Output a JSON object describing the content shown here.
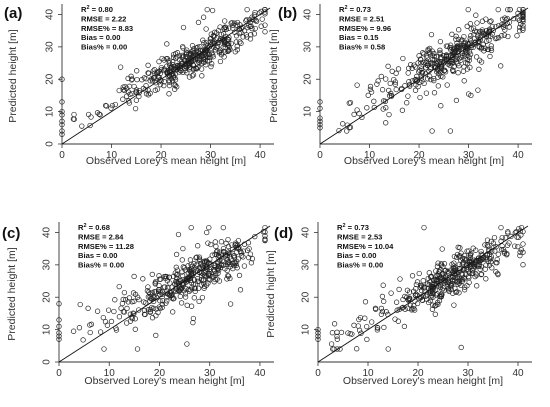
{
  "chart_data": [
    {
      "type": "scatter",
      "panel_label": "(a)",
      "xlabel": "Observed Lorey's mean height [m]",
      "ylabel": "Predicted height [m]",
      "xlim": [
        0,
        42
      ],
      "ylim": [
        0,
        42
      ],
      "xticks": [
        0,
        10,
        20,
        30,
        40
      ],
      "yticks": [
        0,
        10,
        20,
        30,
        40
      ],
      "reference_line": "1:1",
      "stats": [
        {
          "label": "R",
          "sup": "2",
          "value": "0.80"
        },
        {
          "label": "RMSE",
          "value": "2.22"
        },
        {
          "label": "RMSE%",
          "value": "8.83"
        },
        {
          "label": "Bias",
          "value": "0.00"
        },
        {
          "label": "Bias%",
          "value": "0.00"
        }
      ],
      "points": {
        "n": 420,
        "seed": 11,
        "mean_x": 27,
        "sd_x": 6.5,
        "slope": 0.85,
        "intercept": 4.0,
        "noise_sd": 2.6,
        "outlier_frac": 0.05,
        "zero_x_ys": [
          3,
          4,
          6,
          7,
          9,
          10,
          13,
          20
        ]
      }
    },
    {
      "type": "scatter",
      "panel_label": "(b)",
      "xlabel": "Observed Lorey's mean height [m]",
      "ylabel": "Predicted height [m]",
      "xlim": [
        0,
        42
      ],
      "ylim": [
        0,
        42
      ],
      "xticks": [
        0,
        10,
        20,
        30,
        40
      ],
      "yticks": [
        10,
        20,
        30,
        40
      ],
      "reference_line": "1:1",
      "stats": [
        {
          "label": "R",
          "sup": "2",
          "value": "0.73"
        },
        {
          "label": "RMSE",
          "value": "2.51"
        },
        {
          "label": "RMSE%",
          "value": "9.96"
        },
        {
          "label": "Bias",
          "value": "0.15"
        },
        {
          "label": "Bias%",
          "value": "0.58"
        }
      ],
      "points": {
        "n": 400,
        "seed": 23,
        "mean_x": 27,
        "sd_x": 6.5,
        "slope": 0.82,
        "intercept": 5.0,
        "noise_sd": 2.9,
        "outlier_frac": 0.07,
        "zero_x_ys": [
          5,
          6,
          7,
          8,
          11,
          13
        ]
      }
    },
    {
      "type": "scatter",
      "panel_label": "(c)",
      "xlabel": "Observed Lorey's mean height [m]",
      "ylabel": "Predicted height [m]",
      "xlim": [
        0,
        42
      ],
      "ylim": [
        0,
        42
      ],
      "xticks": [
        0,
        10,
        20,
        30,
        40
      ],
      "yticks": [
        0,
        10,
        20,
        30,
        40
      ],
      "reference_line": "1:1",
      "stats": [
        {
          "label": "R",
          "sup": "2",
          "value": "0.68"
        },
        {
          "label": "RMSE",
          "value": "2.84"
        },
        {
          "label": "RMSE%",
          "value": "11.28"
        },
        {
          "label": "Bias",
          "value": "0.00"
        },
        {
          "label": "Bias%",
          "value": "0.00"
        }
      ],
      "points": {
        "n": 420,
        "seed": 37,
        "mean_x": 27,
        "sd_x": 6.5,
        "slope": 0.78,
        "intercept": 5.5,
        "noise_sd": 3.2,
        "outlier_frac": 0.08,
        "zero_x_ys": [
          7,
          8,
          9,
          11,
          13,
          18
        ]
      }
    },
    {
      "type": "scatter",
      "panel_label": "(d)",
      "xlabel": "Observed Lorey's mean height [m]",
      "ylabel": "Predicted hight [m]",
      "xlim": [
        0,
        42
      ],
      "ylim": [
        0,
        42
      ],
      "xticks": [
        0,
        10,
        20,
        30,
        40
      ],
      "yticks": [
        10,
        20,
        30,
        40
      ],
      "reference_line": "1:1",
      "stats": [
        {
          "label": "R",
          "sup": "2",
          "value": "0.73"
        },
        {
          "label": "RMSE",
          "value": "2.53"
        },
        {
          "label": "RMSE%",
          "value": "10.04"
        },
        {
          "label": "Bias",
          "value": "0.00"
        },
        {
          "label": "Bias%",
          "value": "0.00"
        }
      ],
      "points": {
        "n": 420,
        "seed": 53,
        "mean_x": 27,
        "sd_x": 6.5,
        "slope": 0.82,
        "intercept": 4.5,
        "noise_sd": 2.9,
        "outlier_frac": 0.07,
        "zero_x_ys": [
          7,
          8,
          9,
          10
        ]
      }
    }
  ]
}
